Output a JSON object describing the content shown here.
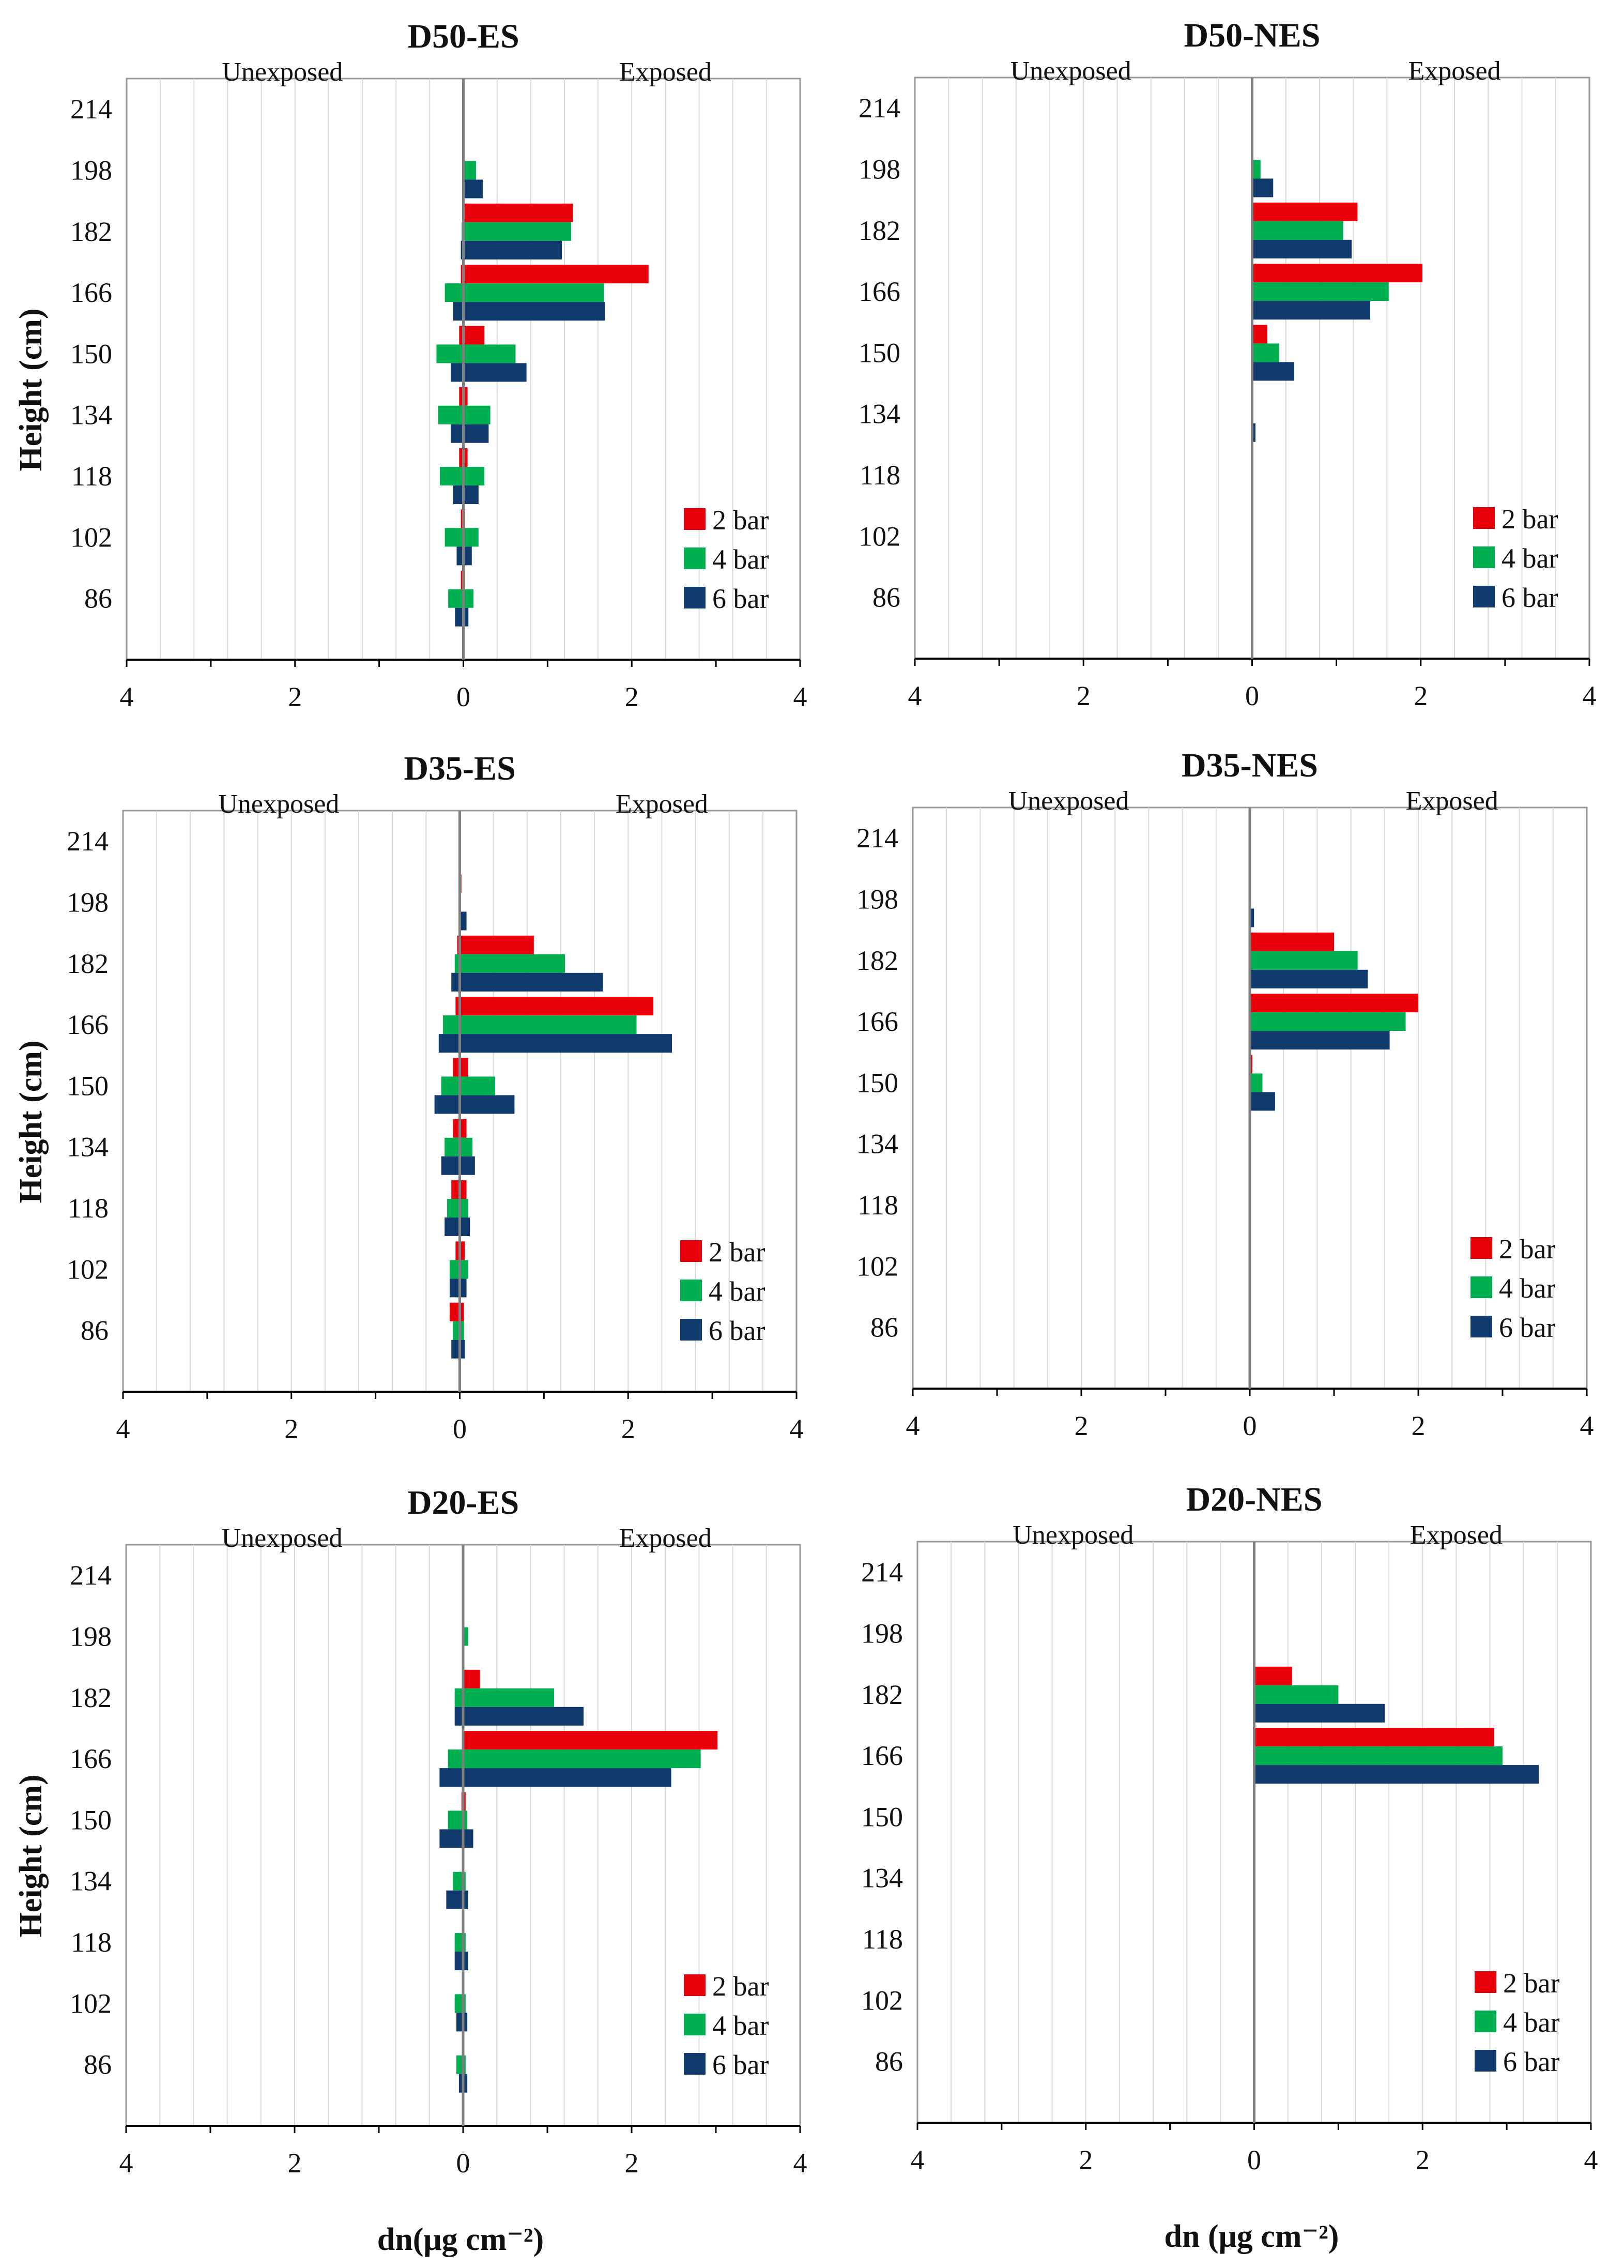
{
  "x_axis_label": "dn(μg cm⁻²)",
  "x_axis_label_right": "dn (μg cm⁻²)",
  "side_labels": {
    "left": "Unexposed",
    "right": "Exposed"
  },
  "colors": {
    "2 bar": "#e8000b",
    "4 bar": "#00b050",
    "6 bar": "#0f3a6b",
    "frame": "#999999",
    "grid": "#d9d9d9",
    "zero": "#7f7f7f"
  },
  "chart_data": [
    {
      "type": "bar",
      "orientation": "horizontal",
      "title": "D50-ES",
      "ylabel": "Height (cm)",
      "xlabel": "",
      "categories": [
        "214",
        "198",
        "182",
        "166",
        "150",
        "134",
        "118",
        "102",
        "86"
      ],
      "xlim": [
        -4,
        4
      ],
      "x_ticks": [
        -4,
        -2,
        0,
        2,
        4
      ],
      "x_tick_labels": [
        "4",
        "2",
        "0",
        "2",
        "4"
      ],
      "legend": [
        "2 bar",
        "4 bar",
        "6 bar"
      ],
      "series": [
        {
          "name": "2 bar",
          "exposed": [
            0,
            0,
            1.3,
            2.2,
            0.25,
            0.05,
            0.05,
            0.02,
            0.02
          ],
          "unexposed": [
            0,
            0,
            0,
            0.03,
            0.05,
            0.05,
            0.05,
            0.03,
            0.03
          ]
        },
        {
          "name": "4 bar",
          "exposed": [
            0,
            0.15,
            1.28,
            1.67,
            0.62,
            0.32,
            0.25,
            0.18,
            0.12
          ],
          "unexposed": [
            0,
            0,
            0.02,
            0.22,
            0.32,
            0.3,
            0.28,
            0.22,
            0.18
          ]
        },
        {
          "name": "6 bar",
          "exposed": [
            0,
            0.23,
            1.17,
            1.68,
            0.75,
            0.3,
            0.18,
            0.1,
            0.06
          ],
          "unexposed": [
            0,
            0,
            0.03,
            0.12,
            0.15,
            0.15,
            0.12,
            0.08,
            0.1
          ]
        }
      ]
    },
    {
      "type": "bar",
      "orientation": "horizontal",
      "title": "D50-NES",
      "ylabel": "",
      "xlabel": "",
      "categories": [
        "214",
        "198",
        "182",
        "166",
        "150",
        "134",
        "118",
        "102",
        "86"
      ],
      "xlim": [
        -4,
        4
      ],
      "x_ticks": [
        -4,
        -2,
        0,
        2,
        4
      ],
      "x_tick_labels": [
        "4",
        "2",
        "0",
        "2",
        "4"
      ],
      "legend": [
        "2 bar",
        "4 bar",
        "6 bar"
      ],
      "series": [
        {
          "name": "2 bar",
          "exposed": [
            0,
            0,
            1.25,
            2.02,
            0.18,
            0,
            0,
            0,
            0
          ],
          "unexposed": [
            0,
            0,
            0,
            0,
            0,
            0,
            0,
            0,
            0
          ]
        },
        {
          "name": "4 bar",
          "exposed": [
            0,
            0.1,
            1.08,
            1.62,
            0.32,
            0,
            0,
            0,
            0
          ],
          "unexposed": [
            0,
            0,
            0,
            0,
            0,
            0,
            0,
            0,
            0
          ]
        },
        {
          "name": "6 bar",
          "exposed": [
            0,
            0.25,
            1.18,
            1.4,
            0.5,
            0.04,
            0,
            0,
            0
          ],
          "unexposed": [
            0,
            0,
            0,
            0,
            0,
            0,
            0,
            0,
            0
          ]
        }
      ]
    },
    {
      "type": "bar",
      "orientation": "horizontal",
      "title": "D35-ES",
      "ylabel": "Height (cm)",
      "xlabel": "",
      "categories": [
        "214",
        "198",
        "182",
        "166",
        "150",
        "134",
        "118",
        "102",
        "86"
      ],
      "xlim": [
        -4,
        4
      ],
      "x_ticks": [
        -4,
        -2,
        0,
        2,
        4
      ],
      "x_tick_labels": [
        "4",
        "2",
        "0",
        "2",
        "4"
      ],
      "legend": [
        "2 bar",
        "4 bar",
        "6 bar"
      ],
      "series": [
        {
          "name": "2 bar",
          "exposed": [
            0,
            0.02,
            0.88,
            2.3,
            0.1,
            0.08,
            0.08,
            0.06,
            0.05
          ],
          "unexposed": [
            0,
            0,
            0.03,
            0.05,
            0.08,
            0.08,
            0.1,
            0.05,
            0.12
          ]
        },
        {
          "name": "4 bar",
          "exposed": [
            0,
            0,
            1.25,
            2.1,
            0.42,
            0.15,
            0.1,
            0.1,
            0.05
          ],
          "unexposed": [
            0,
            0,
            0.06,
            0.2,
            0.22,
            0.18,
            0.15,
            0.12,
            0.08
          ]
        },
        {
          "name": "6 bar",
          "exposed": [
            0,
            0.08,
            1.7,
            2.52,
            0.65,
            0.18,
            0.12,
            0.08,
            0.06
          ],
          "unexposed": [
            0,
            0,
            0.1,
            0.25,
            0.3,
            0.22,
            0.18,
            0.12,
            0.1
          ]
        }
      ]
    },
    {
      "type": "bar",
      "orientation": "horizontal",
      "title": "D35-NES",
      "ylabel": "",
      "xlabel": "",
      "categories": [
        "214",
        "198",
        "182",
        "166",
        "150",
        "134",
        "118",
        "102",
        "86"
      ],
      "xlim": [
        -4,
        4
      ],
      "x_ticks": [
        -4,
        -2,
        0,
        2,
        4
      ],
      "x_tick_labels": [
        "4",
        "2",
        "0",
        "2",
        "4"
      ],
      "legend": [
        "2 bar",
        "4 bar",
        "6 bar"
      ],
      "series": [
        {
          "name": "2 bar",
          "exposed": [
            0,
            0,
            1.0,
            2.0,
            0.03,
            0,
            0,
            0,
            0
          ],
          "unexposed": [
            0,
            0,
            0,
            0,
            0,
            0,
            0,
            0,
            0
          ]
        },
        {
          "name": "4 bar",
          "exposed": [
            0,
            0,
            1.28,
            1.85,
            0.15,
            0,
            0,
            0,
            0
          ],
          "unexposed": [
            0,
            0,
            0,
            0,
            0,
            0,
            0,
            0,
            0
          ]
        },
        {
          "name": "6 bar",
          "exposed": [
            0,
            0.05,
            1.4,
            1.66,
            0.3,
            0,
            0,
            0,
            0
          ],
          "unexposed": [
            0,
            0,
            0,
            0,
            0,
            0,
            0,
            0,
            0
          ]
        }
      ]
    },
    {
      "type": "bar",
      "orientation": "horizontal",
      "title": "D20-ES",
      "ylabel": "Height (cm)",
      "xlabel": "dn(μg cm⁻²)",
      "categories": [
        "214",
        "198",
        "182",
        "166",
        "150",
        "134",
        "118",
        "102",
        "86"
      ],
      "xlim": [
        -4,
        4
      ],
      "x_ticks": [
        -4,
        -2,
        0,
        2,
        4
      ],
      "x_tick_labels": [
        "4",
        "2",
        "0",
        "2",
        "4"
      ],
      "legend": [
        "2 bar",
        "4 bar",
        "6 bar"
      ],
      "series": [
        {
          "name": "2 bar",
          "exposed": [
            0,
            0,
            0.2,
            3.02,
            0.03,
            0,
            0,
            0,
            0
          ],
          "unexposed": [
            0,
            0,
            0,
            0,
            0.02,
            0,
            0,
            0,
            0
          ]
        },
        {
          "name": "4 bar",
          "exposed": [
            0,
            0.06,
            1.08,
            2.82,
            0.05,
            0.03,
            0.03,
            0.03,
            0.03
          ],
          "unexposed": [
            0,
            0,
            0.1,
            0.18,
            0.18,
            0.12,
            0.1,
            0.1,
            0.08
          ]
        },
        {
          "name": "6 bar",
          "exposed": [
            0,
            0,
            1.43,
            2.47,
            0.12,
            0.06,
            0.06,
            0.05,
            0.05
          ],
          "unexposed": [
            0,
            0,
            0.1,
            0.28,
            0.28,
            0.2,
            0.1,
            0.08,
            0.05
          ]
        }
      ]
    },
    {
      "type": "bar",
      "orientation": "horizontal",
      "title": "D20-NES",
      "ylabel": "",
      "xlabel": "dn (μg cm⁻²)",
      "categories": [
        "214",
        "198",
        "182",
        "166",
        "150",
        "134",
        "118",
        "102",
        "86"
      ],
      "xlim": [
        -4,
        4
      ],
      "x_ticks": [
        -4,
        -2,
        0,
        2,
        4
      ],
      "x_tick_labels": [
        "4",
        "2",
        "0",
        "2",
        "4"
      ],
      "legend": [
        "2 bar",
        "4 bar",
        "6 bar"
      ],
      "series": [
        {
          "name": "2 bar",
          "exposed": [
            0,
            0,
            0.45,
            2.85,
            0,
            0,
            0,
            0,
            0
          ],
          "unexposed": [
            0,
            0,
            0,
            0,
            0,
            0,
            0,
            0,
            0
          ]
        },
        {
          "name": "4 bar",
          "exposed": [
            0,
            0,
            1.0,
            2.95,
            0,
            0,
            0,
            0,
            0
          ],
          "unexposed": [
            0,
            0,
            0,
            0,
            0,
            0,
            0,
            0,
            0
          ]
        },
        {
          "name": "6 bar",
          "exposed": [
            0,
            0,
            1.55,
            3.38,
            0,
            0,
            0,
            0,
            0
          ],
          "unexposed": [
            0,
            0,
            0,
            0,
            0,
            0,
            0,
            0,
            0
          ]
        }
      ]
    }
  ]
}
